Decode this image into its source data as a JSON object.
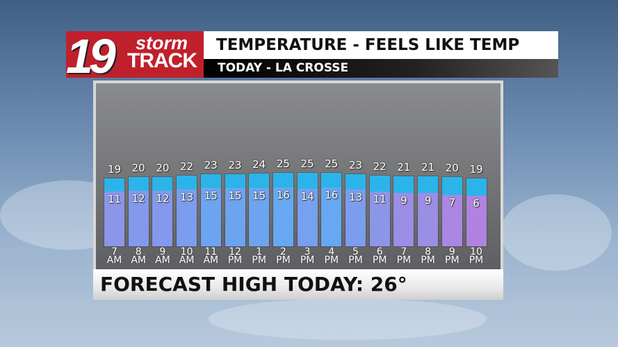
{
  "logo": {
    "number": "19",
    "word1": "storm",
    "word2": "TRACK",
    "brand_color": "#c0202c"
  },
  "header": {
    "title": "TEMPERATURE - FEELS LIKE TEMP",
    "subtitle": "TODAY - LA CROSSE"
  },
  "footer": {
    "text": "FORECAST HIGH TODAY: 26°"
  },
  "chart_data": {
    "type": "bar",
    "categories": [
      [
        "7",
        "AM"
      ],
      [
        "8",
        "AM"
      ],
      [
        "9",
        "AM"
      ],
      [
        "10",
        "AM"
      ],
      [
        "11",
        "AM"
      ],
      [
        "12",
        "PM"
      ],
      [
        "1",
        "PM"
      ],
      [
        "2",
        "PM"
      ],
      [
        "3",
        "PM"
      ],
      [
        "4",
        "PM"
      ],
      [
        "5",
        "PM"
      ],
      [
        "6",
        "PM"
      ],
      [
        "7",
        "PM"
      ],
      [
        "8",
        "PM"
      ],
      [
        "9",
        "PM"
      ],
      [
        "10",
        "PM"
      ]
    ],
    "series": [
      {
        "values": [
          19,
          20,
          20,
          22,
          23,
          23,
          24,
          25,
          25,
          25,
          23,
          22,
          21,
          21,
          20,
          19
        ],
        "color": "#2bb4ea"
      },
      {
        "values": [
          11,
          12,
          12,
          13,
          15,
          15,
          15,
          16,
          14,
          16,
          13,
          11,
          9,
          9,
          7,
          6
        ],
        "color_low": "#b083e0",
        "color_high": "#66a8f2"
      }
    ]
  }
}
